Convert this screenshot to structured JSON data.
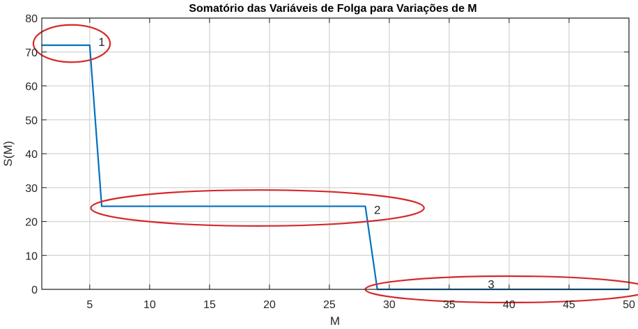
{
  "chart_data": {
    "type": "line",
    "title": "Somatório das Variáveis de Folga para Variações de M",
    "xlabel": "M",
    "ylabel": "S(M)",
    "xlim": [
      1,
      50
    ],
    "ylim": [
      0,
      80
    ],
    "xticks": [
      5,
      10,
      15,
      20,
      25,
      30,
      35,
      40,
      45,
      50
    ],
    "yticks": [
      0,
      10,
      20,
      30,
      40,
      50,
      60,
      70,
      80
    ],
    "grid": true,
    "series": [
      {
        "color": "#0072bd",
        "x": [
          1,
          2,
          3,
          4,
          5,
          6,
          7,
          8,
          9,
          10,
          11,
          12,
          13,
          14,
          15,
          16,
          17,
          18,
          19,
          20,
          21,
          22,
          23,
          24,
          25,
          26,
          27,
          28,
          29,
          30,
          31,
          32,
          33,
          34,
          35,
          36,
          37,
          38,
          39,
          40,
          41,
          42,
          43,
          44,
          45,
          46,
          47,
          48,
          49,
          50
        ],
        "y": [
          72,
          72,
          72,
          72,
          72,
          24.5,
          24.5,
          24.5,
          24.5,
          24.5,
          24.5,
          24.5,
          24.5,
          24.5,
          24.5,
          24.5,
          24.5,
          24.5,
          24.5,
          24.5,
          24.5,
          24.5,
          24.5,
          24.5,
          24.5,
          24.5,
          24.5,
          24.5,
          0,
          0,
          0,
          0,
          0,
          0,
          0,
          0,
          0,
          0,
          0,
          0,
          0,
          0,
          0,
          0,
          0,
          0,
          0,
          0,
          0,
          0
        ]
      }
    ],
    "annotations": [
      {
        "label": "1",
        "color": "#d62728",
        "label_at": [
          6,
          73
        ],
        "ellipse_center": [
          3.5,
          72.5
        ],
        "ellipse_radius": [
          3.2,
          5.5
        ]
      },
      {
        "label": "2",
        "color": "#d62728",
        "label_at": [
          29,
          23.5
        ],
        "ellipse_center": [
          19,
          24
        ],
        "ellipse_radius": [
          13.9,
          5.3
        ]
      },
      {
        "label": "3",
        "color": "#d62728",
        "label_at": [
          38.5,
          1.5
        ],
        "ellipse_center": [
          39.9,
          0
        ],
        "ellipse_radius": [
          11.9,
          3.9
        ]
      }
    ]
  }
}
